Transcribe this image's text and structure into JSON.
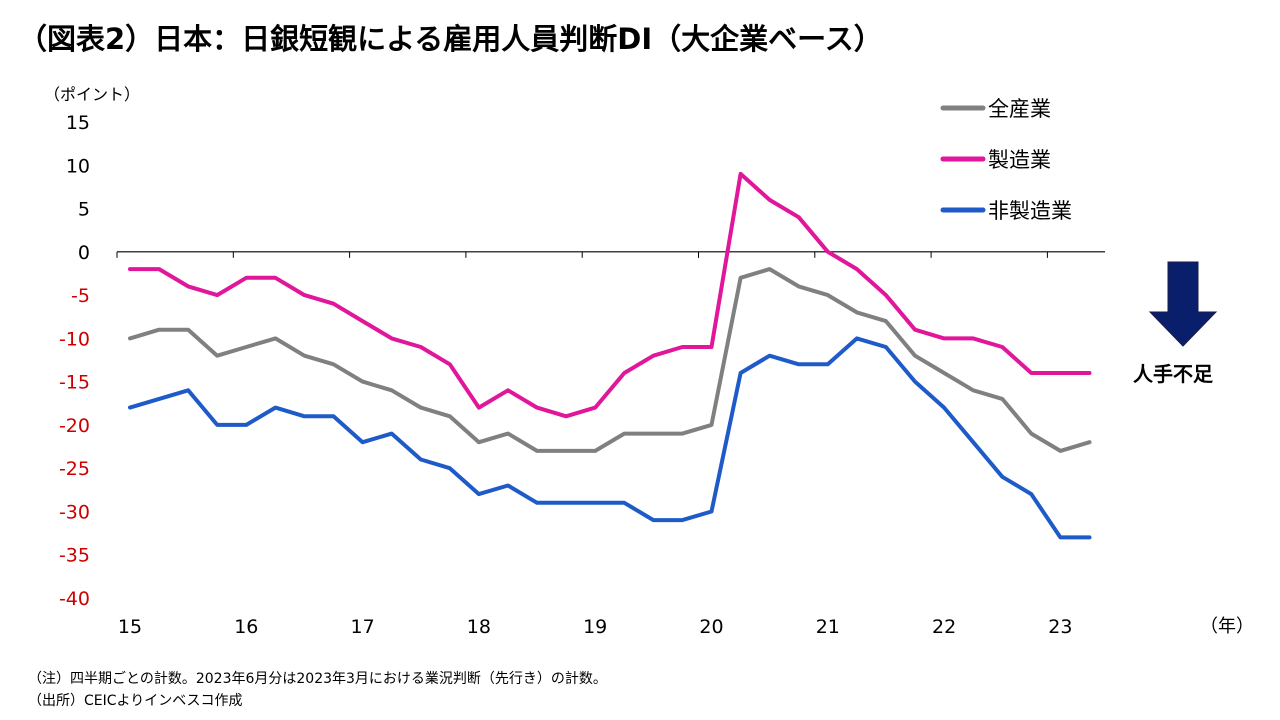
{
  "title": "（図表2）日本：日銀短観による雇用人員判断DI（大企業ベース）",
  "notes": {
    "note": "（注）四半期ごとの計数。2023年6月分は2023年3月における業況判断（先行き）の計数。",
    "source": "（出所）CEICよりインベスコ作成"
  },
  "annotation": {
    "label": "人手不足",
    "arrow_color": "#0a1f6b"
  },
  "chart_data": {
    "type": "line",
    "ylabel": "（ポイント）",
    "xlabel": "（年）",
    "ylim": [
      -40,
      15
    ],
    "yticks": [
      15,
      10,
      5,
      0,
      -5,
      -10,
      -15,
      -20,
      -25,
      -30,
      -35,
      -40
    ],
    "negative_tick_color": "#cc0000",
    "x_tick_labels": [
      "15",
      "16",
      "17",
      "18",
      "19",
      "20",
      "21",
      "22",
      "23"
    ],
    "x_start_year": 2015,
    "grid": false,
    "legend_position": "top-right",
    "series": [
      {
        "name": "全産業",
        "color": "#808080",
        "values": [
          -10,
          -9,
          -9,
          -12,
          -11,
          -10,
          -12,
          -13,
          -15,
          -16,
          -18,
          -19,
          -22,
          -21,
          -23,
          -23,
          -23,
          -21,
          -21,
          -21,
          -20,
          -3,
          -2,
          -4,
          -5,
          -7,
          -8,
          -12,
          -14,
          -16,
          -17,
          -21,
          -23,
          -22
        ]
      },
      {
        "name": "製造業",
        "color": "#e0169b",
        "values": [
          -2,
          -2,
          -4,
          -5,
          -3,
          -3,
          -5,
          -6,
          -8,
          -10,
          -11,
          -13,
          -18,
          -16,
          -18,
          -19,
          -18,
          -14,
          -12,
          -11,
          -11,
          9,
          6,
          4,
          0,
          -2,
          -5,
          -9,
          -10,
          -10,
          -11,
          -14,
          -14,
          -14
        ]
      },
      {
        "name": "非製造業",
        "color": "#1f5bc8",
        "values": [
          -18,
          -17,
          -16,
          -20,
          -20,
          -18,
          -19,
          -19,
          -22,
          -21,
          -24,
          -25,
          -28,
          -27,
          -29,
          -29,
          -29,
          -29,
          -31,
          -31,
          -30,
          -14,
          -12,
          -13,
          -13,
          -10,
          -11,
          -15,
          -18,
          -22,
          -26,
          -28,
          -33,
          -33
        ]
      }
    ]
  }
}
